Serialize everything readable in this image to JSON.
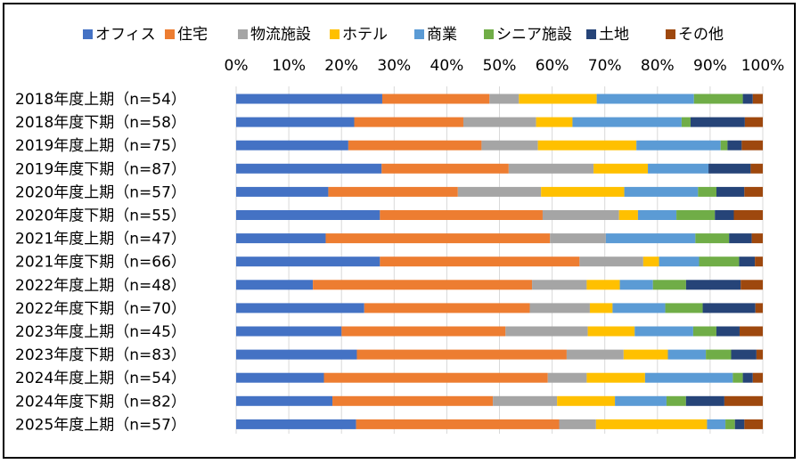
{
  "chart_data": {
    "type": "bar",
    "orientation": "horizontal",
    "stacked": "percent",
    "legend_position": "top",
    "categories": [
      "2018年度上期（n=54）",
      "2018年度下期（n=58）",
      "2019年度上期（n=75）",
      "2019年度下期（n=87）",
      "2020年度上期（n=57）",
      "2020年度下期（n=55）",
      "2021年度上期（n=47）",
      "2021年度下期（n=66）",
      "2022年度上期（n=48）",
      "2022年度下期（n=70）",
      "2023年度上期（n=45）",
      "2023年度下期（n=83）",
      "2024年度上期（n=54）",
      "2024年度下期（n=82）",
      "2025年度上期（n=57）"
    ],
    "x_ticks": [
      "0%",
      "10%",
      "20%",
      "30%",
      "40%",
      "50%",
      "60%",
      "70%",
      "80%",
      "90%",
      "100%"
    ],
    "xlim": [
      0,
      100
    ],
    "series": [
      {
        "name": "オフィス",
        "color": "#4472C4",
        "values": [
          27.8,
          22.4,
          21.3,
          27.6,
          17.5,
          27.3,
          17.0,
          27.3,
          14.6,
          24.3,
          20.0,
          22.9,
          16.7,
          18.3,
          22.8
        ]
      },
      {
        "name": "住宅",
        "color": "#ED7D31",
        "values": [
          20.4,
          20.7,
          25.3,
          24.1,
          24.6,
          30.9,
          42.6,
          37.9,
          41.7,
          31.4,
          31.1,
          39.8,
          42.6,
          30.5,
          38.6
        ]
      },
      {
        "name": "物流施設",
        "color": "#A5A5A5",
        "values": [
          5.6,
          13.8,
          10.7,
          16.1,
          15.8,
          14.5,
          10.6,
          12.1,
          10.4,
          11.4,
          15.6,
          10.8,
          7.4,
          12.2,
          7.0
        ]
      },
      {
        "name": "ホテル",
        "color": "#FFC000",
        "values": [
          14.8,
          6.9,
          18.7,
          10.3,
          15.8,
          3.6,
          0.0,
          3.0,
          6.3,
          4.3,
          8.9,
          8.4,
          11.1,
          11.0,
          21.1
        ]
      },
      {
        "name": "商業",
        "color": "#5B9BD5",
        "values": [
          18.5,
          20.7,
          16.0,
          11.5,
          14.0,
          7.3,
          17.0,
          7.6,
          6.3,
          10.0,
          11.1,
          7.2,
          16.7,
          9.8,
          3.5
        ]
      },
      {
        "name": "シニア施設",
        "color": "#70AD47",
        "values": [
          9.3,
          1.7,
          1.3,
          0.0,
          3.5,
          7.3,
          6.4,
          7.6,
          6.3,
          7.1,
          4.4,
          4.8,
          1.9,
          3.7,
          1.8
        ]
      },
      {
        "name": "土地",
        "color": "#264478",
        "values": [
          1.9,
          10.3,
          2.7,
          8.0,
          5.3,
          3.6,
          4.3,
          3.0,
          10.4,
          10.0,
          4.4,
          4.8,
          1.9,
          7.3,
          1.8
        ]
      },
      {
        "name": "その他",
        "color": "#9E480E",
        "values": [
          1.9,
          3.4,
          4.0,
          2.3,
          3.5,
          5.5,
          2.1,
          1.5,
          4.2,
          1.4,
          4.4,
          1.2,
          1.9,
          7.3,
          3.5
        ]
      }
    ]
  }
}
